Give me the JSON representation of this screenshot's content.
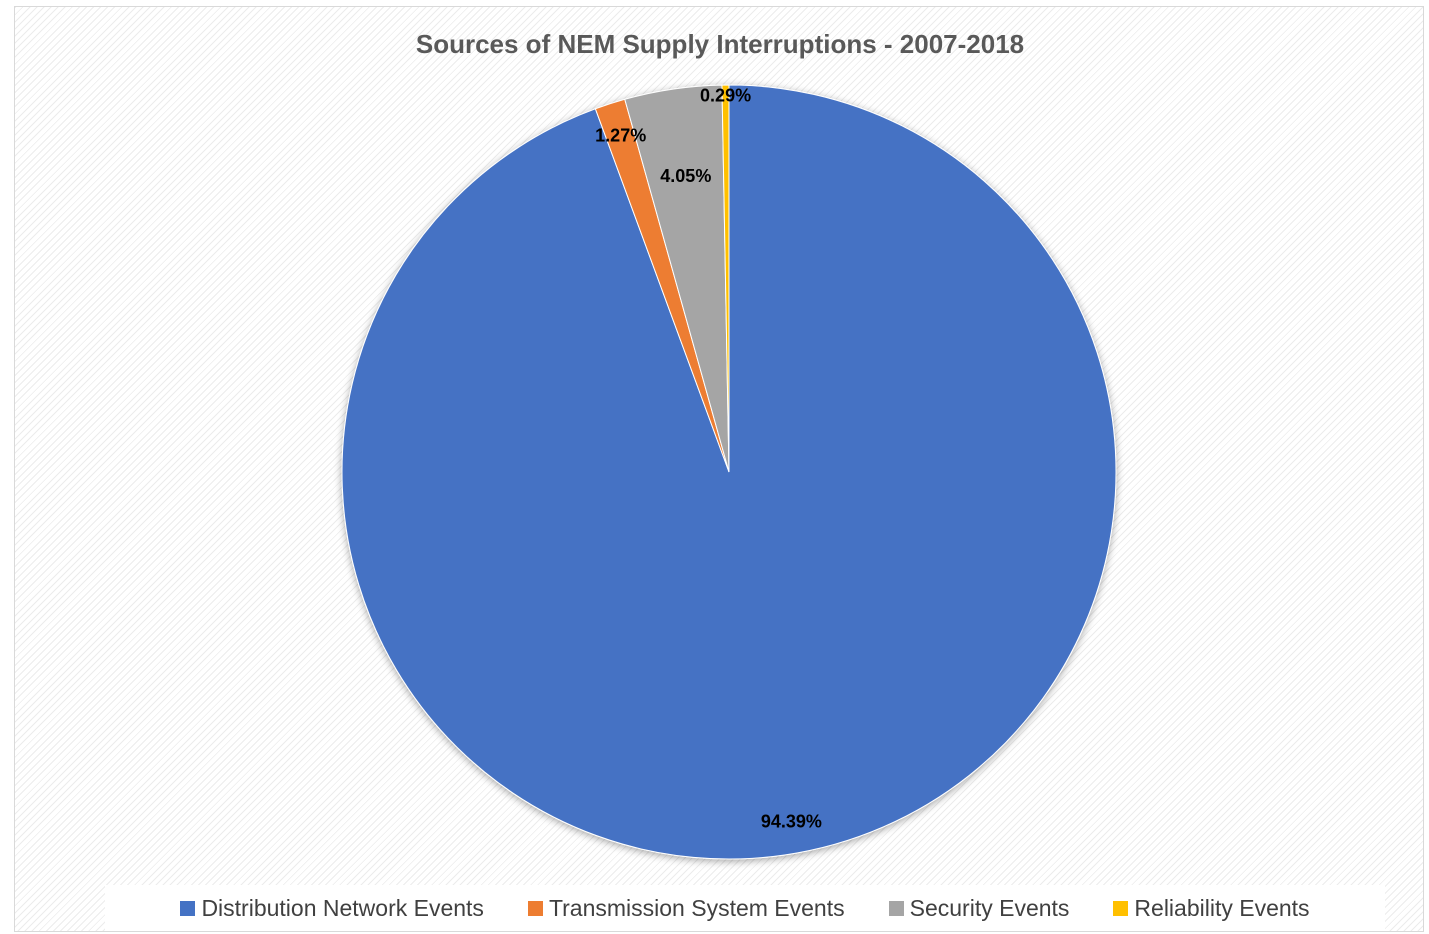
{
  "chart_data": {
    "type": "pie",
    "title": "Sources of NEM Supply Interruptions - 2007-2018",
    "categories": [
      "Distribution Network Events",
      "Transmission System Events",
      "Security Events",
      "Reliability Events"
    ],
    "values": [
      94.39,
      1.27,
      4.05,
      0.29
    ],
    "data_labels": [
      "94.39%",
      "1.27%",
      "4.05%",
      "0.29%"
    ],
    "colors": [
      "#4472C4",
      "#ED7D31",
      "#A5A5A5",
      "#FFC000"
    ],
    "legend": "bottom"
  }
}
